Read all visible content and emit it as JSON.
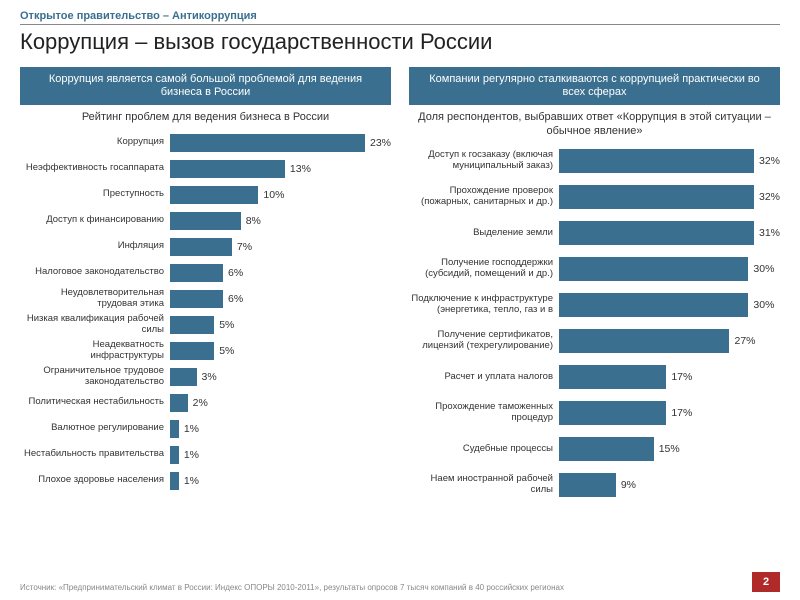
{
  "header": {
    "supertitle": "Открытое правительство – Антикоррупция",
    "title": "Коррупция – вызов государственности России"
  },
  "colors": {
    "accent": "#3a6f8f",
    "bar": "#3a6f8f",
    "header_text": "#ffffff",
    "page_bg": "#ffffff",
    "pagenum_bg": "#b02a2a"
  },
  "left_panel": {
    "header": "Коррупция является самой большой проблемой для ведения бизнеса в России",
    "subtitle": "Рейтинг проблем для ведения бизнеса в России",
    "max_value": 25,
    "items": [
      {
        "label": "Коррупция",
        "value": 23,
        "display": "23%"
      },
      {
        "label": "Неэффективность госаппарата",
        "value": 13,
        "display": "13%"
      },
      {
        "label": "Преступность",
        "value": 10,
        "display": "10%"
      },
      {
        "label": "Доступ к финансированию",
        "value": 8,
        "display": "8%"
      },
      {
        "label": "Инфляция",
        "value": 7,
        "display": "7%"
      },
      {
        "label": "Налоговое законодательство",
        "value": 6,
        "display": "6%"
      },
      {
        "label": "Неудовлетворительная трудовая этика",
        "value": 6,
        "display": "6%"
      },
      {
        "label": "Низкая квалификация рабочей силы",
        "value": 5,
        "display": "5%"
      },
      {
        "label": "Неадекватность инфраструктуры",
        "value": 5,
        "display": "5%"
      },
      {
        "label": "Ограничительное трудовое законодательство",
        "value": 3,
        "display": "3%"
      },
      {
        "label": "Политическая нестабильность",
        "value": 2,
        "display": "2%"
      },
      {
        "label": "Валютное регулирование",
        "value": 1,
        "display": "1%"
      },
      {
        "label": "Нестабильность правительства",
        "value": 1,
        "display": "1%"
      },
      {
        "label": "Плохое здоровье населения",
        "value": 1,
        "display": "1%"
      }
    ]
  },
  "right_panel": {
    "header": "Компании регулярно сталкиваются с коррупцией практически во всех сферах",
    "subtitle": "Доля респондентов, выбравших ответ «Коррупция в этой ситуации – обычное явление»",
    "max_value": 35,
    "items": [
      {
        "label": "Доступ к госзаказу (включая муниципальный заказ)",
        "value": 32,
        "display": "32%"
      },
      {
        "label": "Прохождение проверок (пожарных, санитарных и др.)",
        "value": 32,
        "display": "32%"
      },
      {
        "label": "Выделение земли",
        "value": 31,
        "display": "31%"
      },
      {
        "label": "Получение господдержки (субсидий, помещений и др.)",
        "value": 30,
        "display": "30%"
      },
      {
        "label": "Подключение к инфраструктуре (энергетика, тепло, газ и в",
        "value": 30,
        "display": "30%"
      },
      {
        "label": "Получение сертификатов, лицензий (техрегулирование)",
        "value": 27,
        "display": "27%"
      },
      {
        "label": "Расчет и уплата налогов",
        "value": 17,
        "display": "17%"
      },
      {
        "label": "Прохождение таможенных процедур",
        "value": 17,
        "display": "17%"
      },
      {
        "label": "Судебные процессы",
        "value": 15,
        "display": "15%"
      },
      {
        "label": "Наем иностранной рабочей силы",
        "value": 9,
        "display": "9%"
      }
    ]
  },
  "footer": {
    "source": "Источник: «Предпринимательский климат в России: Индекс ОПОРЫ 2010-2011», результаты опросов 7 тысяч компаний в 40 российских регионах",
    "page": "2"
  }
}
